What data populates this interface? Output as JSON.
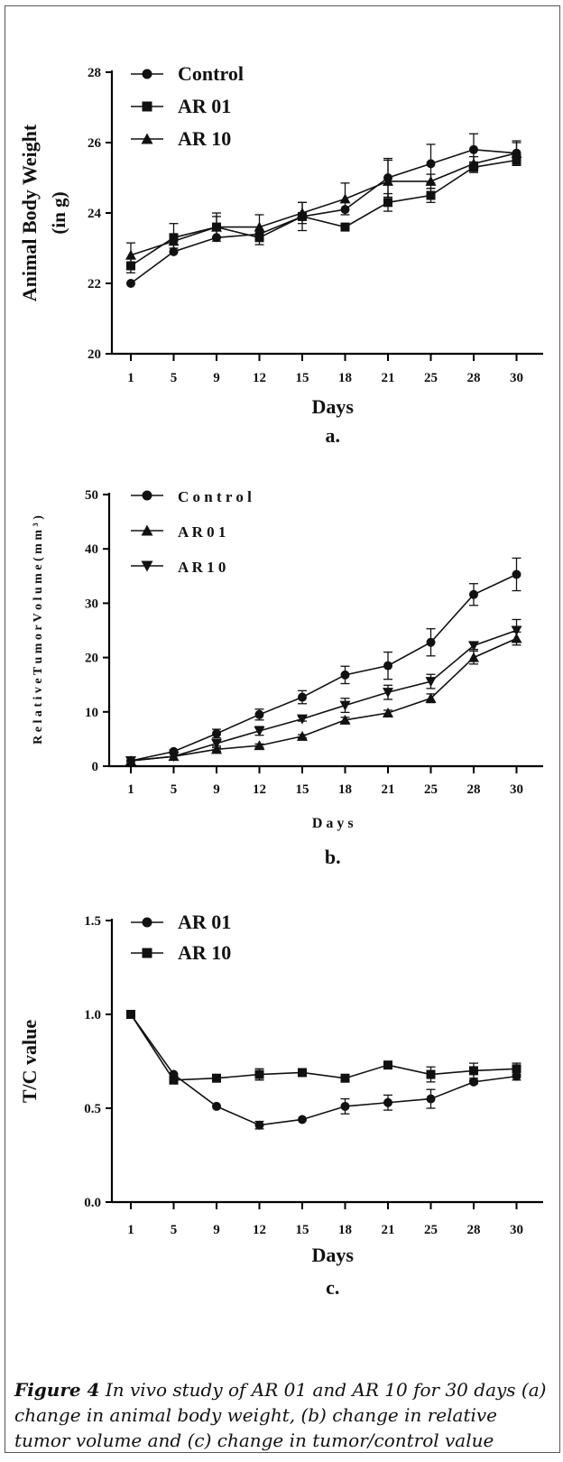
{
  "caption": {
    "label": "Figure 4",
    "text": "In vivo study of AR 01 and AR 10 for 30 days (a) change in animal body weight, (b) change in relative tumor volume and (c) change in tumor/control value"
  },
  "chart_data": [
    {
      "type": "line",
      "panel_label": "a.",
      "xlabel": "Days",
      "ylabel_lines": [
        "Animal Body Weight",
        "(in g)"
      ],
      "categories": [
        "1",
        "5",
        "9",
        "12",
        "15",
        "18",
        "21",
        "25",
        "28",
        "30"
      ],
      "ylim": [
        20,
        28
      ],
      "yticks": [
        20,
        22,
        24,
        26,
        28
      ],
      "ytick_labels": [
        "20",
        "22",
        "24",
        "26",
        "28"
      ],
      "legend_position": "top-left",
      "series": [
        {
          "name": "Control",
          "marker": "circle",
          "values": [
            22.0,
            22.9,
            23.3,
            23.4,
            23.9,
            24.1,
            25.0,
            25.4,
            25.8,
            25.7
          ],
          "errors": [
            0,
            0,
            0,
            0,
            0,
            0,
            0.55,
            0.55,
            0.45,
            0.35
          ]
        },
        {
          "name": "AR 01",
          "marker": "square",
          "values": [
            22.5,
            23.3,
            23.6,
            23.3,
            23.9,
            23.6,
            24.3,
            24.5,
            25.3,
            25.5
          ],
          "errors": [
            0.2,
            0.4,
            0.4,
            0.2,
            0.4,
            0,
            0.25,
            0.2,
            0.15,
            0.15
          ]
        },
        {
          "name": "AR 10",
          "marker": "triangle",
          "values": [
            22.8,
            23.2,
            23.6,
            23.6,
            24.0,
            24.4,
            24.9,
            24.9,
            25.4,
            25.7
          ],
          "errors": [
            0.35,
            0.2,
            0.3,
            0.35,
            0.3,
            0.45,
            0.6,
            0.2,
            0.2,
            0.3
          ]
        }
      ]
    },
    {
      "type": "line",
      "panel_label": "b.",
      "xlabel": "D a y s",
      "ylabel_lines": [
        "R e l a t i v e  T u m o r  V o l u m e  ( m m ³ )"
      ],
      "categories": [
        "1",
        "5",
        "9",
        "12",
        "15",
        "18",
        "21",
        "25",
        "28",
        "30"
      ],
      "ylim": [
        0,
        50
      ],
      "yticks": [
        0,
        10,
        20,
        30,
        40,
        50
      ],
      "ytick_labels": [
        "0",
        "10",
        "20",
        "30",
        "40",
        "50"
      ],
      "legend_position": "top-left",
      "series": [
        {
          "name": "C o n t r o l",
          "marker": "circle",
          "values": [
            1.0,
            2.7,
            6.0,
            9.5,
            12.7,
            16.8,
            18.5,
            22.8,
            31.6,
            35.3
          ],
          "errors": [
            0,
            0.3,
            0.8,
            1.0,
            1.2,
            1.6,
            2.5,
            2.5,
            2.0,
            3.0
          ]
        },
        {
          "name": "A R  0 1",
          "marker": "triangle",
          "values": [
            1.0,
            1.8,
            3.1,
            3.8,
            5.5,
            8.5,
            9.8,
            12.5,
            20.0,
            23.5
          ],
          "errors": [
            0,
            0,
            0.3,
            0.3,
            0.3,
            0.5,
            0.5,
            0.8,
            1.2,
            1.2
          ]
        },
        {
          "name": "A R  1 0",
          "marker": "triangle-down",
          "values": [
            1.0,
            1.8,
            4.2,
            6.5,
            8.7,
            11.2,
            13.6,
            15.6,
            22.2,
            25.0
          ],
          "errors": [
            0,
            0,
            0.5,
            0.8,
            0.4,
            1.3,
            1.3,
            1.3,
            0.7,
            2.0
          ]
        }
      ]
    },
    {
      "type": "line",
      "panel_label": "c.",
      "xlabel": "Days",
      "ylabel_lines": [
        "T/C value"
      ],
      "categories": [
        "1",
        "5",
        "9",
        "12",
        "15",
        "18",
        "21",
        "25",
        "28",
        "30"
      ],
      "ylim": [
        0,
        1.5
      ],
      "yticks": [
        0,
        0.5,
        1.0,
        1.5
      ],
      "ytick_labels": [
        "0.0",
        "0.5",
        "1.0",
        "1.5"
      ],
      "legend_position": "top-left",
      "series": [
        {
          "name": "AR 01",
          "marker": "circle",
          "values": [
            1.0,
            0.68,
            0.51,
            0.41,
            0.44,
            0.51,
            0.53,
            0.55,
            0.64,
            0.67
          ],
          "errors": [
            0,
            0,
            0,
            0.02,
            0,
            0.04,
            0.04,
            0.05,
            0.01,
            0.02
          ]
        },
        {
          "name": "AR 10",
          "marker": "square",
          "values": [
            1.0,
            0.65,
            0.66,
            0.68,
            0.69,
            0.66,
            0.73,
            0.68,
            0.7,
            0.71
          ],
          "errors": [
            0,
            0,
            0,
            0.03,
            0,
            0,
            0,
            0.04,
            0.04,
            0.03
          ]
        }
      ]
    }
  ]
}
